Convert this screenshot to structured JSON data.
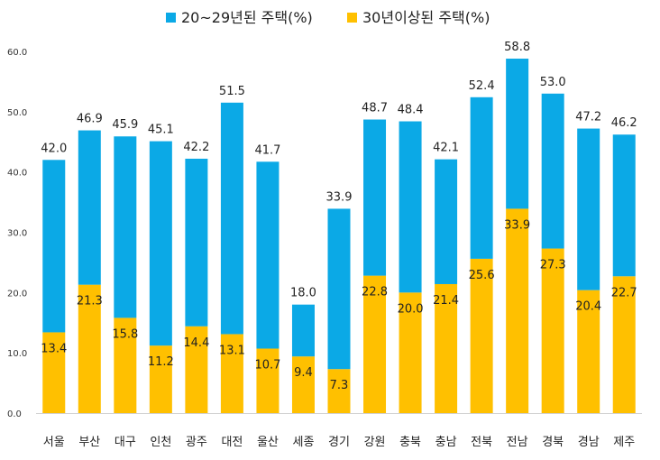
{
  "chart_data": {
    "type": "bar",
    "stacked": true,
    "categories": [
      "서울",
      "부산",
      "대구",
      "인천",
      "광주",
      "대전",
      "울산",
      "세종",
      "경기",
      "강원",
      "충북",
      "충남",
      "전북",
      "전남",
      "경북",
      "경남",
      "제주"
    ],
    "totals": [
      42.0,
      46.9,
      45.9,
      45.1,
      42.2,
      51.5,
      41.7,
      18.0,
      33.9,
      48.7,
      48.4,
      42.1,
      52.4,
      58.8,
      53.0,
      47.2,
      46.2
    ],
    "total_labels": [
      "42.0",
      "46.9",
      "45.9",
      "45.1",
      "42.2",
      "51.5",
      "41.7",
      "18.0",
      "33.9",
      "48.7",
      "48.4",
      "42.1",
      "52.4",
      "58.8",
      "53.0",
      "47.2",
      "46.2"
    ],
    "series": [
      {
        "name": "20~29년된 주택(%)",
        "color": "#0BA9E6",
        "values": [
          28.6,
          25.6,
          30.1,
          33.9,
          27.8,
          38.4,
          31.0,
          8.6,
          26.6,
          25.9,
          28.4,
          20.7,
          26.8,
          24.9,
          25.7,
          26.8,
          23.5
        ]
      },
      {
        "name": "30년이상된 주택(%)",
        "color": "#FFC000",
        "values": [
          13.4,
          21.3,
          15.8,
          11.2,
          14.4,
          13.1,
          10.7,
          9.4,
          7.3,
          22.8,
          20.0,
          21.4,
          25.6,
          33.9,
          27.3,
          20.4,
          22.7
        ],
        "labels": [
          "13.4",
          "21.3",
          "15.8",
          "11.2",
          "14.4",
          "13.1",
          "10.7",
          "9.4",
          "7.3",
          "22.8",
          "20.0",
          "21.4",
          "25.6",
          "33.9",
          "27.3",
          "20.4",
          "22.7"
        ]
      }
    ],
    "yticks": [
      "0.0",
      "10.0",
      "20.0",
      "30.0",
      "40.0",
      "50.0",
      "60.0"
    ],
    "ylim": [
      0,
      60
    ],
    "grid": false,
    "legend": "top-center",
    "title": "",
    "xlabel": "",
    "ylabel": ""
  }
}
